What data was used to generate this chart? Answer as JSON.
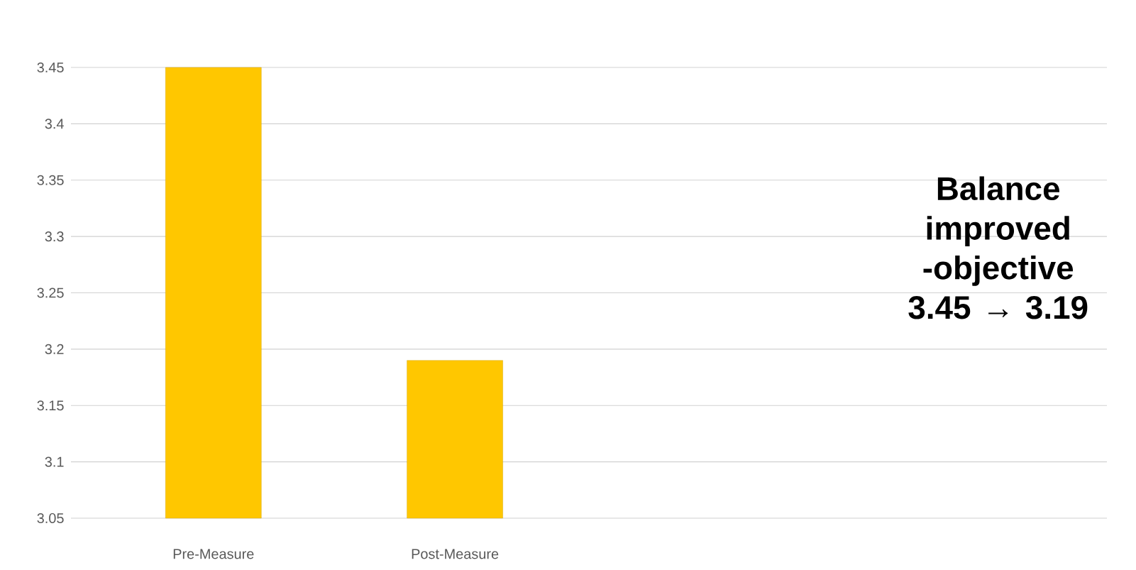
{
  "chart_data": {
    "type": "bar",
    "categories": [
      "Pre-Measure",
      "Post-Measure"
    ],
    "values": [
      3.45,
      3.19
    ],
    "color": "#ffc700",
    "ylim": [
      3.05,
      3.45
    ],
    "yticks": [
      3.05,
      3.1,
      3.15,
      3.2,
      3.25,
      3.3,
      3.35,
      3.4,
      3.45
    ],
    "grid": "y",
    "annotations": [
      "Balance improved -objective 3.45 → 3.19"
    ]
  }
}
